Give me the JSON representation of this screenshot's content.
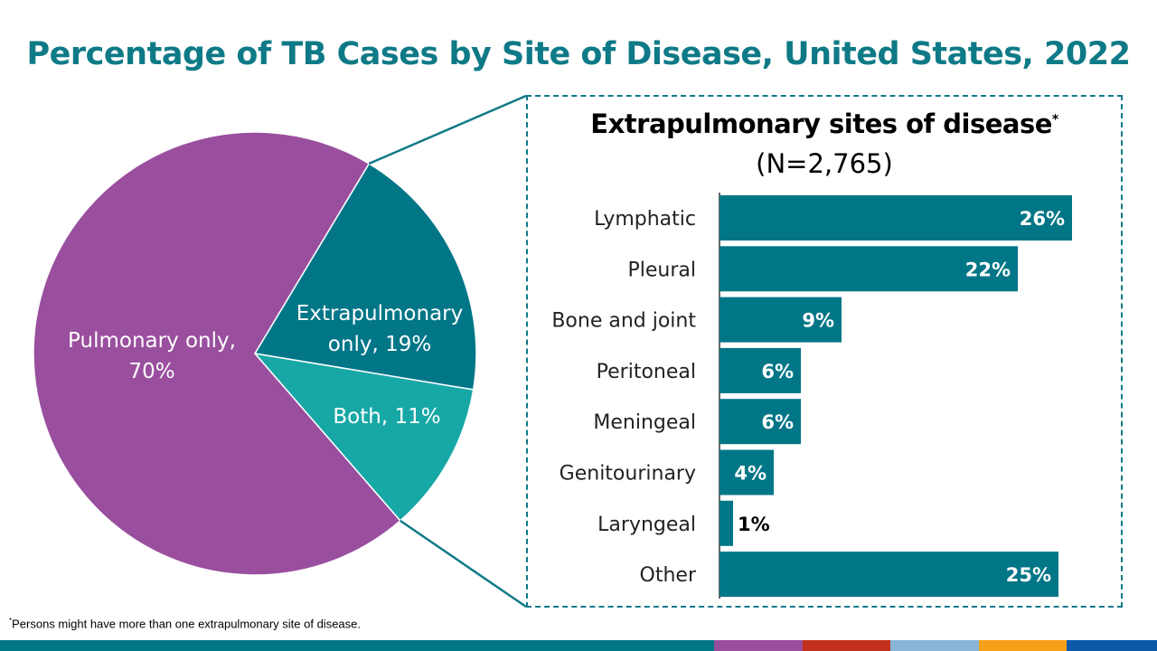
{
  "chart_data": [
    {
      "type": "pie",
      "title": "Percentage of TB Cases by Site of Disease, United States, 2022",
      "slices": [
        {
          "label": "Extrapulmonary only, 19%",
          "label_lines": [
            "Extrapulmonary",
            "only, 19%"
          ],
          "value": 19,
          "color": "#007687"
        },
        {
          "label": "Both, 11%",
          "label_lines": [
            "Both, 11%"
          ],
          "value": 11,
          "color": "#17a8a6"
        },
        {
          "label": "Pulmonary only, 70%",
          "label_lines": [
            "Pulmonary only,",
            "70%"
          ],
          "value": 70,
          "color": "#994f9e"
        }
      ]
    },
    {
      "type": "bar",
      "orientation": "horizontal",
      "title": "Extrapulmonary sites of disease",
      "title_marker": "*",
      "subtitle": "(N=2,765)",
      "categories": [
        "Lymphatic",
        "Pleural",
        "Bone and joint",
        "Peritoneal",
        "Meningeal",
        "Genitourinary",
        "Laryngeal",
        "Other"
      ],
      "values": [
        26,
        22,
        9,
        6,
        6,
        4,
        1,
        25
      ],
      "data_labels": [
        "26%",
        "22%",
        "9%",
        "6%",
        "6%",
        "4%",
        "1%",
        "25%"
      ],
      "color": "#007687",
      "grid": false
    }
  ],
  "footnote": {
    "marker": "*",
    "text": "Persons might have more  than one extrapulmonary  site of disease."
  },
  "footer_colors": [
    "#007687",
    "#994f9e",
    "#c1311d",
    "#8ab4d8",
    "#f6a01a",
    "#0b5aa8"
  ]
}
